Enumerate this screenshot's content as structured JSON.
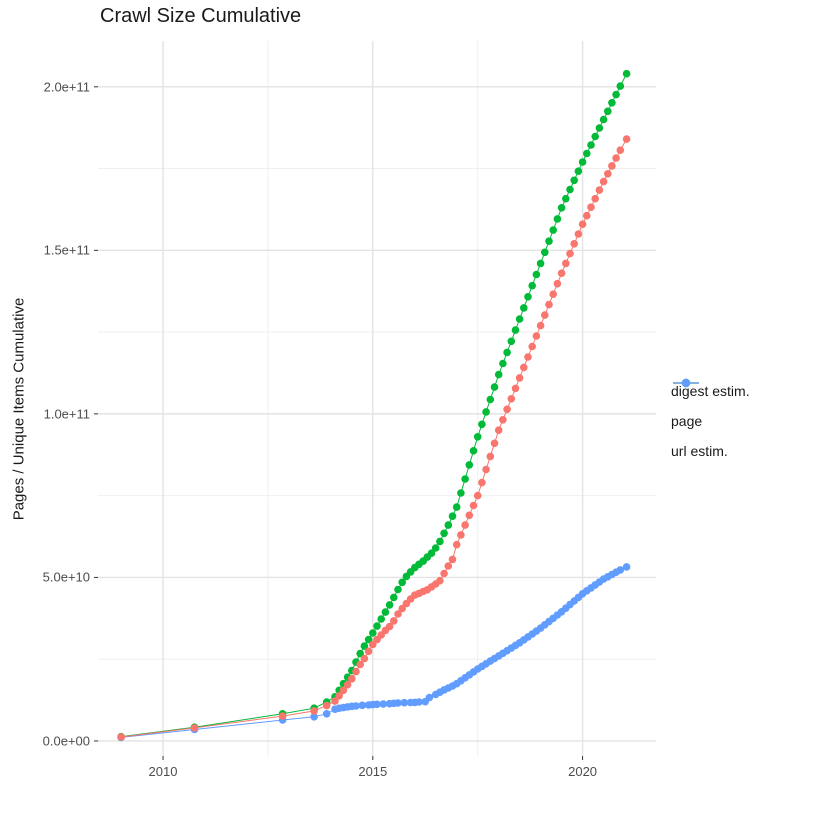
{
  "chart_data": {
    "type": "line",
    "title": "Crawl Size Cumulative",
    "xlabel": "",
    "ylabel": "Pages / Unique Items Cumulative",
    "legend_position": "right",
    "grid": true,
    "values_in": "billions (1e9) of pages / unique items",
    "x_axis": {
      "min": 2008.45,
      "max": 2021.75,
      "major_ticks": [
        2010,
        2015,
        2020
      ],
      "tick_labels": [
        "2010",
        "2015",
        "2020"
      ],
      "minor_ticks": [
        2012.5,
        2017.5
      ]
    },
    "y_axis": {
      "min": -4.6,
      "max": 214,
      "major_ticks": [
        0,
        50,
        100,
        150,
        200
      ],
      "tick_labels": [
        "0.0e+00",
        "5.0e+10",
        "1.0e+11",
        "1.5e+11",
        "2.0e+11"
      ],
      "minor_ticks": [
        25,
        75,
        125,
        175
      ]
    },
    "series": [
      {
        "name": "digest estim.",
        "color": "#F8766D",
        "points": [
          [
            2009,
            1.2
          ],
          [
            2010.75,
            4
          ],
          [
            2012.85,
            7.6
          ],
          [
            2013.6,
            9.2
          ],
          [
            2013.9,
            10.8
          ],
          [
            2014.1,
            12.2
          ],
          [
            2014.2,
            13.8
          ],
          [
            2014.3,
            15.5
          ],
          [
            2014.4,
            17.2
          ],
          [
            2014.5,
            19
          ],
          [
            2014.6,
            21.2
          ],
          [
            2014.7,
            23.4
          ],
          [
            2014.8,
            25.2
          ],
          [
            2014.9,
            27.4
          ],
          [
            2015,
            29.5
          ],
          [
            2015.1,
            31
          ],
          [
            2015.2,
            32.4
          ],
          [
            2015.3,
            33.8
          ],
          [
            2015.4,
            35
          ],
          [
            2015.5,
            36.7
          ],
          [
            2015.6,
            38.8
          ],
          [
            2015.7,
            40.5
          ],
          [
            2015.8,
            42
          ],
          [
            2015.9,
            43.4
          ],
          [
            2016,
            44.6
          ],
          [
            2016.1,
            45.1
          ],
          [
            2016.2,
            45.7
          ],
          [
            2016.3,
            46.2
          ],
          [
            2016.4,
            47.1
          ],
          [
            2016.5,
            48
          ],
          [
            2016.6,
            49
          ],
          [
            2016.7,
            51.2
          ],
          [
            2016.8,
            53.5
          ],
          [
            2016.9,
            55.5
          ],
          [
            2017,
            60
          ],
          [
            2017.1,
            63
          ],
          [
            2017.2,
            66
          ],
          [
            2017.3,
            69
          ],
          [
            2017.4,
            72
          ],
          [
            2017.5,
            75
          ],
          [
            2017.6,
            79
          ],
          [
            2017.7,
            83
          ],
          [
            2017.8,
            87
          ],
          [
            2017.9,
            91
          ],
          [
            2018,
            95
          ],
          [
            2018.1,
            98.2
          ],
          [
            2018.2,
            101.4
          ],
          [
            2018.3,
            104.6
          ],
          [
            2018.4,
            107.8
          ],
          [
            2018.5,
            111
          ],
          [
            2018.6,
            114.2
          ],
          [
            2018.7,
            117.4
          ],
          [
            2018.8,
            120.6
          ],
          [
            2018.9,
            123.8
          ],
          [
            2019,
            127
          ],
          [
            2019.1,
            130.2
          ],
          [
            2019.2,
            133.4
          ],
          [
            2019.3,
            136.6
          ],
          [
            2019.4,
            139.8
          ],
          [
            2019.5,
            143
          ],
          [
            2019.6,
            146
          ],
          [
            2019.7,
            149
          ],
          [
            2019.8,
            152
          ],
          [
            2019.9,
            155
          ],
          [
            2020,
            158
          ],
          [
            2020.1,
            160.6
          ],
          [
            2020.2,
            163.2
          ],
          [
            2020.3,
            165.8
          ],
          [
            2020.4,
            168.4
          ],
          [
            2020.5,
            171
          ],
          [
            2020.6,
            173.4
          ],
          [
            2020.7,
            175.8
          ],
          [
            2020.8,
            178.2
          ],
          [
            2020.9,
            180.6
          ],
          [
            2021.05,
            184
          ]
        ]
      },
      {
        "name": "page",
        "color": "#00BA38",
        "points": [
          [
            2009,
            1.3
          ],
          [
            2010.75,
            4.2
          ],
          [
            2012.85,
            8.3
          ],
          [
            2013.6,
            10
          ],
          [
            2013.9,
            11.9
          ],
          [
            2014.1,
            13.5
          ],
          [
            2014.2,
            15.5
          ],
          [
            2014.3,
            17.5
          ],
          [
            2014.4,
            19.5
          ],
          [
            2014.5,
            21.5
          ],
          [
            2014.6,
            24.1
          ],
          [
            2014.7,
            26.7
          ],
          [
            2014.8,
            29
          ],
          [
            2014.9,
            31
          ],
          [
            2015,
            33
          ],
          [
            2015.1,
            35.1
          ],
          [
            2015.2,
            37.3
          ],
          [
            2015.3,
            39.4
          ],
          [
            2015.4,
            41.6
          ],
          [
            2015.5,
            43.9
          ],
          [
            2015.6,
            46.3
          ],
          [
            2015.7,
            48.5
          ],
          [
            2015.8,
            50.3
          ],
          [
            2015.9,
            51.7
          ],
          [
            2016,
            53
          ],
          [
            2016.1,
            54
          ],
          [
            2016.2,
            55
          ],
          [
            2016.3,
            56.2
          ],
          [
            2016.4,
            57.4
          ],
          [
            2016.5,
            59
          ],
          [
            2016.6,
            61
          ],
          [
            2016.7,
            63.5
          ],
          [
            2016.8,
            66
          ],
          [
            2016.9,
            68.7
          ],
          [
            2017,
            71.5
          ],
          [
            2017.1,
            75.8
          ],
          [
            2017.2,
            80.1
          ],
          [
            2017.3,
            84.4
          ],
          [
            2017.4,
            88.7
          ],
          [
            2017.5,
            93
          ],
          [
            2017.6,
            96.8
          ],
          [
            2017.7,
            100.6
          ],
          [
            2017.8,
            104.4
          ],
          [
            2017.9,
            108.2
          ],
          [
            2018,
            112
          ],
          [
            2018.1,
            115.4
          ],
          [
            2018.2,
            118.8
          ],
          [
            2018.3,
            122.2
          ],
          [
            2018.4,
            125.6
          ],
          [
            2018.5,
            129
          ],
          [
            2018.6,
            132.4
          ],
          [
            2018.7,
            135.8
          ],
          [
            2018.8,
            139.2
          ],
          [
            2018.9,
            142.6
          ],
          [
            2019,
            146
          ],
          [
            2019.1,
            149.4
          ],
          [
            2019.2,
            152.8
          ],
          [
            2019.3,
            156.2
          ],
          [
            2019.4,
            159.6
          ],
          [
            2019.5,
            163
          ],
          [
            2019.6,
            165.8
          ],
          [
            2019.7,
            168.6
          ],
          [
            2019.8,
            171.4
          ],
          [
            2019.9,
            174.2
          ],
          [
            2020,
            177
          ],
          [
            2020.1,
            179.6
          ],
          [
            2020.2,
            182.2
          ],
          [
            2020.3,
            184.8
          ],
          [
            2020.4,
            187.4
          ],
          [
            2020.5,
            190
          ],
          [
            2020.6,
            192.5
          ],
          [
            2020.7,
            195.1
          ],
          [
            2020.8,
            197.6
          ],
          [
            2020.9,
            200.2
          ],
          [
            2021.05,
            204
          ]
        ]
      },
      {
        "name": "url estim.",
        "color": "#619CFF",
        "points": [
          [
            2009,
            1.1
          ],
          [
            2010.75,
            3.5
          ],
          [
            2012.85,
            6.4
          ],
          [
            2013.6,
            7.4
          ],
          [
            2013.9,
            8.3
          ],
          [
            2014.1,
            9.7
          ],
          [
            2014.2,
            10
          ],
          [
            2014.3,
            10.2
          ],
          [
            2014.4,
            10.4
          ],
          [
            2014.5,
            10.6
          ],
          [
            2014.6,
            10.7
          ],
          [
            2014.75,
            10.9
          ],
          [
            2014.9,
            11
          ],
          [
            2015,
            11.1
          ],
          [
            2015.1,
            11.2
          ],
          [
            2015.25,
            11.3
          ],
          [
            2015.4,
            11.4
          ],
          [
            2015.5,
            11.5
          ],
          [
            2015.6,
            11.6
          ],
          [
            2015.75,
            11.7
          ],
          [
            2015.9,
            11.75
          ],
          [
            2016,
            11.8
          ],
          [
            2016.1,
            11.9
          ],
          [
            2016.25,
            12
          ],
          [
            2016.35,
            13.3
          ],
          [
            2016.5,
            14.2
          ],
          [
            2016.6,
            14.9
          ],
          [
            2016.7,
            15.6
          ],
          [
            2016.8,
            16.2
          ],
          [
            2016.9,
            16.8
          ],
          [
            2017,
            17.5
          ],
          [
            2017.1,
            18.4
          ],
          [
            2017.2,
            19.3
          ],
          [
            2017.3,
            20.2
          ],
          [
            2017.4,
            21.1
          ],
          [
            2017.5,
            22
          ],
          [
            2017.6,
            22.8
          ],
          [
            2017.7,
            23.6
          ],
          [
            2017.8,
            24.4
          ],
          [
            2017.9,
            25.2
          ],
          [
            2018,
            26
          ],
          [
            2018.1,
            26.8
          ],
          [
            2018.2,
            27.6
          ],
          [
            2018.3,
            28.4
          ],
          [
            2018.4,
            29.2
          ],
          [
            2018.5,
            30
          ],
          [
            2018.6,
            30.9
          ],
          [
            2018.7,
            31.8
          ],
          [
            2018.8,
            32.7
          ],
          [
            2018.9,
            33.6
          ],
          [
            2019,
            34.5
          ],
          [
            2019.1,
            35.5
          ],
          [
            2019.2,
            36.5
          ],
          [
            2019.3,
            37.5
          ],
          [
            2019.4,
            38.5
          ],
          [
            2019.5,
            39.5
          ],
          [
            2019.6,
            40.6
          ],
          [
            2019.7,
            41.7
          ],
          [
            2019.8,
            42.8
          ],
          [
            2019.9,
            43.9
          ],
          [
            2020,
            45
          ],
          [
            2020.1,
            45.9
          ],
          [
            2020.2,
            46.8
          ],
          [
            2020.3,
            47.7
          ],
          [
            2020.4,
            48.6
          ],
          [
            2020.5,
            49.5
          ],
          [
            2020.6,
            50.2
          ],
          [
            2020.7,
            50.9
          ],
          [
            2020.8,
            51.6
          ],
          [
            2020.9,
            52.3
          ],
          [
            2021.05,
            53.2
          ]
        ]
      }
    ],
    "legend": {
      "items": [
        {
          "label": "digest estim.",
          "color": "#F8766D"
        },
        {
          "label": "page",
          "color": "#00BA38"
        },
        {
          "label": "url estim.",
          "color": "#619CFF"
        }
      ]
    },
    "style": {
      "grid_major_color": "#e3e3e3",
      "grid_minor_color": "#ededed",
      "tick_color": "#333333",
      "axis_text_color": "#4d4d4d",
      "point_radius": 3.8
    }
  }
}
